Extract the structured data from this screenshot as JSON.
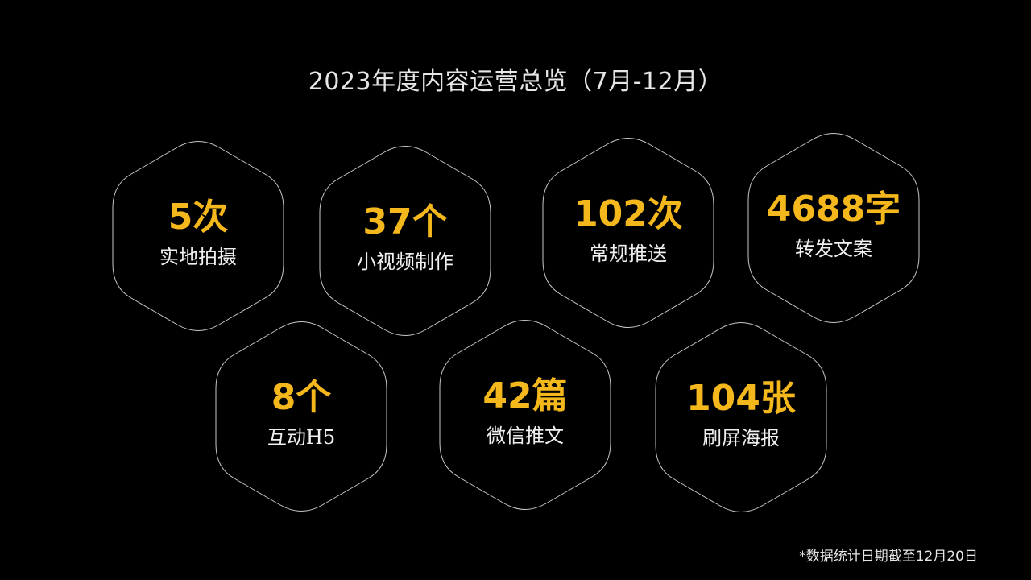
{
  "title": "2023年度内容运营总览（7月-12月）",
  "stats": [
    {
      "value": "5次",
      "label": "实地拍摄"
    },
    {
      "value": "37个",
      "label": "小视频制作"
    },
    {
      "value": "102次",
      "label": "常规推送"
    },
    {
      "value": "4688字",
      "label": "转发文案"
    },
    {
      "value": "8个",
      "label": "互动H5"
    },
    {
      "value": "42篇",
      "label": "微信推文"
    },
    {
      "value": "104张",
      "label": "刷屏海报"
    }
  ],
  "footnote": "*数据统计日期截至12月20日",
  "colors": {
    "background": "#000000",
    "value": "#f5b81c",
    "label": "#f0f0f0",
    "outline": "#c8c8c8"
  }
}
